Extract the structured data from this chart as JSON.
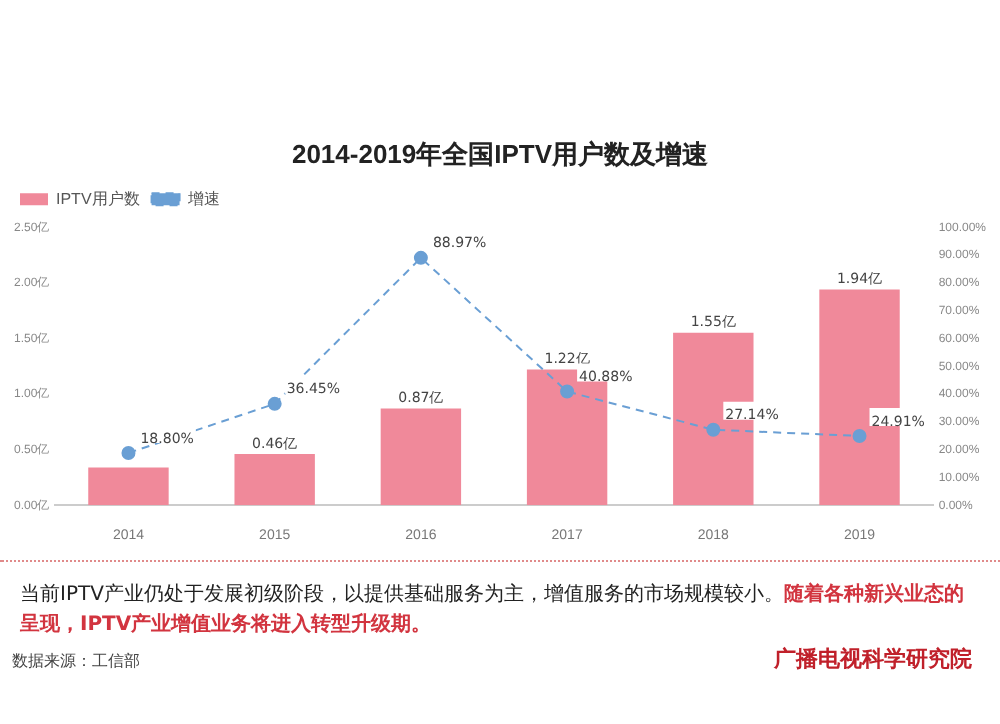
{
  "chart_data": {
    "type": "bar",
    "title": "2014-2019年全国IPTV用户数及增速",
    "categories": [
      "2014",
      "2015",
      "2016",
      "2017",
      "2018",
      "2019"
    ],
    "series": [
      {
        "name": "IPTV用户数",
        "color": "#f0899a",
        "values": [
          0.34,
          0.46,
          0.87,
          1.22,
          1.55,
          1.94
        ],
        "value_labels": [
          null,
          "0.46亿",
          "0.87亿",
          "1.22亿",
          "1.55亿",
          "1.94亿"
        ]
      },
      {
        "name": "增速",
        "type": "line",
        "axis": "y2",
        "color": "#6a9fd4",
        "line_style": "dashed",
        "marker": "circle",
        "values": [
          18.8,
          36.45,
          88.97,
          40.88,
          27.14,
          24.91
        ],
        "value_labels": [
          "18.80%",
          "36.45%",
          "88.97%",
          "40.88%",
          "27.14%",
          "24.91%"
        ]
      }
    ],
    "ylim": [
      0,
      2.5
    ],
    "yticks": [
      {
        "value": 0,
        "label": "0.00亿"
      },
      {
        "value": 0.5,
        "label": "0.50亿"
      },
      {
        "value": 1,
        "label": "1.00亿"
      },
      {
        "value": 1.5,
        "label": "1.50亿"
      },
      {
        "value": 2,
        "label": "2.00亿"
      },
      {
        "value": 2.5,
        "label": "2.50亿"
      }
    ],
    "y2lim": [
      0,
      100
    ],
    "y2ticks": [
      {
        "value": 0,
        "label": "0.00%"
      },
      {
        "value": 10,
        "label": "10.00%"
      },
      {
        "value": 20,
        "label": "20.00%"
      },
      {
        "value": 30,
        "label": "30.00%"
      },
      {
        "value": 40,
        "label": "40.00%"
      },
      {
        "value": 50,
        "label": "50.00%"
      },
      {
        "value": 60,
        "label": "60.00%"
      },
      {
        "value": 70,
        "label": "70.00%"
      },
      {
        "value": 80,
        "label": "80.00%"
      },
      {
        "value": 90,
        "label": "90.00%"
      },
      {
        "value": 100,
        "label": "100.00%"
      }
    ],
    "grid": false,
    "legend": "top left",
    "annotations": [
      "当前IPTV产业仍处于发展初级阶段，以提供基础服务为主，增值服务的市场规模较小。",
      "随着各种新兴业态的呈现，IPTV产业增值业务将进入转型升级期。",
      "数据来源：工信部",
      "广播电视科学研究院"
    ]
  }
}
